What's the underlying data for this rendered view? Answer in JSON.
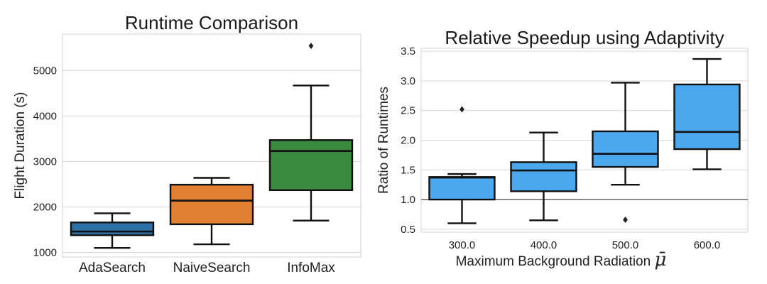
{
  "chart_data": [
    {
      "type": "box",
      "title": "Runtime Comparison",
      "xlabel": "",
      "ylabel": "Flight Duration (s)",
      "ylim": [
        900,
        5800
      ],
      "yticks": [
        1000,
        2000,
        3000,
        4000,
        5000
      ],
      "categories": [
        "AdaSearch",
        "NaiveSearch",
        "InfoMax"
      ],
      "boxes": [
        {
          "whislo": 1100,
          "q1": 1380,
          "med": 1460,
          "q3": 1660,
          "whishi": 1860,
          "fliers": [],
          "color": "#2e6fa6"
        },
        {
          "whislo": 1180,
          "q1": 1620,
          "med": 2140,
          "q3": 2490,
          "whishi": 2640,
          "fliers": [],
          "color": "#e07f32"
        },
        {
          "whislo": 1700,
          "q1": 2370,
          "med": 3230,
          "q3": 3470,
          "whishi": 4670,
          "fliers": [
            5540
          ],
          "color": "#3a8a3e"
        }
      ],
      "grid": true
    },
    {
      "type": "box",
      "title": "Relative Speedup using Adaptivity",
      "xlabel": "Maximum Background Radiation",
      "xlabel_symbol": "μ̄",
      "ylabel": "Ratio of Runtimes",
      "ylim": [
        0.45,
        3.55
      ],
      "yticks": [
        0.5,
        1.0,
        1.5,
        2.0,
        2.5,
        3.0,
        3.5
      ],
      "ytick_labels": [
        "0.5",
        "1.0",
        "1.5",
        "2.0",
        "2.5",
        "3.0",
        "3.5"
      ],
      "reference_line": 1.0,
      "categories": [
        "300.0",
        "400.0",
        "500.0",
        "600.0"
      ],
      "boxes": [
        {
          "whislo": 0.6,
          "q1": 1.0,
          "med": 1.37,
          "q3": 1.38,
          "whishi": 1.43,
          "fliers": [
            2.52
          ],
          "color": "#4ba8ee"
        },
        {
          "whislo": 0.65,
          "q1": 1.14,
          "med": 1.49,
          "q3": 1.63,
          "whishi": 2.13,
          "fliers": [],
          "color": "#4ba8ee"
        },
        {
          "whislo": 1.25,
          "q1": 1.55,
          "med": 1.77,
          "q3": 2.15,
          "whishi": 2.97,
          "fliers": [
            0.66
          ],
          "color": "#4ba8ee"
        },
        {
          "whislo": 1.51,
          "q1": 1.85,
          "med": 2.14,
          "q3": 2.94,
          "whishi": 3.37,
          "fliers": [],
          "color": "#4ba8ee"
        }
      ],
      "grid": true
    }
  ]
}
